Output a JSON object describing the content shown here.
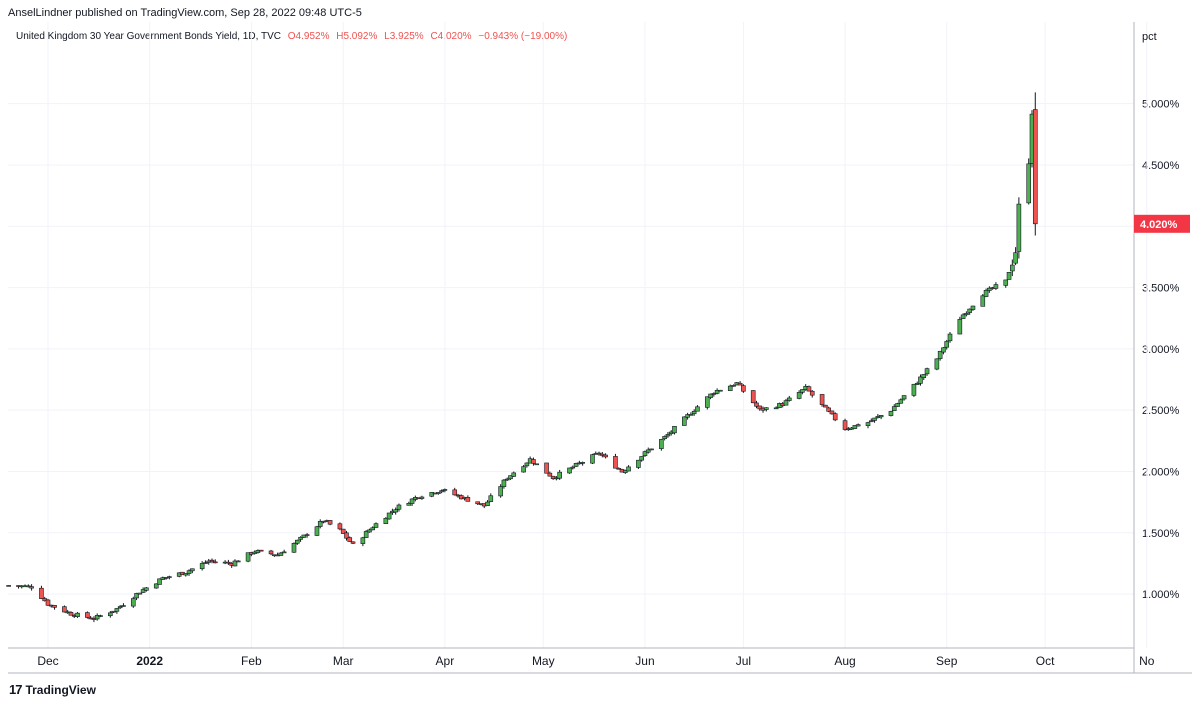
{
  "header": {
    "published": "AnselLindner published on TradingView.com, Sep 28, 2022 09:48 UTC-5"
  },
  "legend": {
    "symbol": "United Kingdom 30 Year Government Bonds Yield, 1D, TVC",
    "open": "O4.952%",
    "high": "H5.092%",
    "low": "L3.925%",
    "close": "C4.020%",
    "change": "−0.943% (−19.00%)"
  },
  "watermark": {
    "logo": "17",
    "text": "TradingView"
  },
  "colors": {
    "up": "#4caf50",
    "down": "#ef5350",
    "grid": "#f0f3fa",
    "axis": "#b2b5be",
    "price_label_bg": "#f23645"
  },
  "chart_data": {
    "type": "candlestick",
    "unit_label": "pct",
    "yaxis_ticks": [
      "1.000%",
      "1.500%",
      "2.000%",
      "2.500%",
      "3.000%",
      "3.500%",
      "4.000%",
      "4.500%",
      "5.000%"
    ],
    "ylim": [
      0.65,
      5.25
    ],
    "last_price_label": "4.020%",
    "last_price": 4.02,
    "xaxis_labels": [
      "Dec",
      "2022",
      "Feb",
      "Mar",
      "Apr",
      "May",
      "Jun",
      "Jul",
      "Aug",
      "Sep",
      "Oct",
      "No"
    ],
    "xaxis_bold": [
      "2022"
    ],
    "grid": true,
    "series_close_anchors": [
      [
        "2021-11-19",
        1.07
      ],
      [
        "2021-11-26",
        1.06
      ],
      [
        "2021-12-01",
        0.92
      ],
      [
        "2021-12-08",
        0.84
      ],
      [
        "2021-12-15",
        0.8
      ],
      [
        "2021-12-22",
        0.88
      ],
      [
        "2021-12-29",
        1.02
      ],
      [
        "2022-01-05",
        1.13
      ],
      [
        "2022-01-12",
        1.18
      ],
      [
        "2022-01-19",
        1.27
      ],
      [
        "2022-01-26",
        1.25
      ],
      [
        "2022-02-02",
        1.35
      ],
      [
        "2022-02-09",
        1.32
      ],
      [
        "2022-02-16",
        1.45
      ],
      [
        "2022-02-23",
        1.6
      ],
      [
        "2022-02-28",
        1.52
      ],
      [
        "2022-03-04",
        1.4
      ],
      [
        "2022-03-10",
        1.55
      ],
      [
        "2022-03-17",
        1.7
      ],
      [
        "2022-03-24",
        1.8
      ],
      [
        "2022-03-31",
        1.85
      ],
      [
        "2022-04-07",
        1.78
      ],
      [
        "2022-04-13",
        1.72
      ],
      [
        "2022-04-20",
        1.95
      ],
      [
        "2022-04-27",
        2.1
      ],
      [
        "2022-05-04",
        1.95
      ],
      [
        "2022-05-11",
        2.05
      ],
      [
        "2022-05-18",
        2.15
      ],
      [
        "2022-05-25",
        2.0
      ],
      [
        "2022-06-01",
        2.15
      ],
      [
        "2022-06-08",
        2.3
      ],
      [
        "2022-06-15",
        2.48
      ],
      [
        "2022-06-22",
        2.65
      ],
      [
        "2022-06-29",
        2.72
      ],
      [
        "2022-07-06",
        2.5
      ],
      [
        "2022-07-13",
        2.55
      ],
      [
        "2022-07-20",
        2.68
      ],
      [
        "2022-07-27",
        2.48
      ],
      [
        "2022-08-01",
        2.35
      ],
      [
        "2022-08-08",
        2.4
      ],
      [
        "2022-08-15",
        2.5
      ],
      [
        "2022-08-22",
        2.7
      ],
      [
        "2022-08-29",
        2.92
      ],
      [
        "2022-09-05",
        3.25
      ],
      [
        "2022-09-12",
        3.45
      ],
      [
        "2022-09-19",
        3.55
      ],
      [
        "2022-09-22",
        3.8
      ],
      [
        "2022-09-23",
        4.15
      ],
      [
        "2022-09-26",
        4.55
      ],
      [
        "2022-09-27",
        4.95
      ],
      [
        "2022-09-28",
        4.02
      ]
    ],
    "last_candle": {
      "open": 4.952,
      "high": 5.092,
      "low": 3.925,
      "close": 4.02
    }
  }
}
